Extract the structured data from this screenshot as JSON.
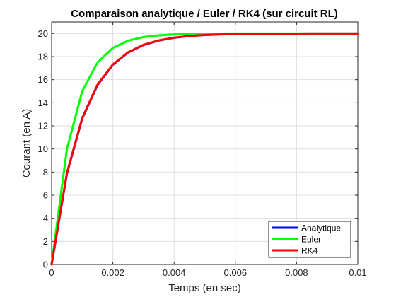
{
  "chart_data": {
    "type": "line",
    "title": "Comparaison analytique / Euler / RK4 (sur circuit RL)",
    "xlabel": "Temps (en sec)",
    "ylabel": "Courant (en A)",
    "xlim": [
      0,
      0.01
    ],
    "ylim": [
      0,
      21
    ],
    "xticks": [
      0,
      0.002,
      0.004,
      0.006,
      0.008,
      0.01
    ],
    "xtick_labels": [
      "0",
      "0.002",
      "0.004",
      "0.006",
      "0.008",
      "0.01"
    ],
    "yticks": [
      0,
      2,
      4,
      6,
      8,
      10,
      12,
      14,
      16,
      18,
      20
    ],
    "ytick_labels": [
      "0",
      "2",
      "4",
      "6",
      "8",
      "10",
      "12",
      "14",
      "16",
      "18",
      "20"
    ],
    "grid": true,
    "legend_position": "bottom-right",
    "x": [
      0,
      0.0005,
      0.001,
      0.0015,
      0.002,
      0.0025,
      0.003,
      0.0035,
      0.004,
      0.0045,
      0.005,
      0.0055,
      0.006,
      0.0065,
      0.007,
      0.0075,
      0.008,
      0.0085,
      0.009,
      0.0095,
      0.01
    ],
    "series": [
      {
        "name": "Analytique",
        "color": "#0000ff",
        "values": [
          0,
          7.87,
          12.64,
          15.54,
          17.29,
          18.36,
          19.0,
          19.39,
          19.63,
          19.78,
          19.87,
          19.92,
          19.95,
          19.97,
          19.98,
          19.99,
          19.99,
          20.0,
          20.0,
          20.0,
          20.0
        ]
      },
      {
        "name": "Euler",
        "color": "#00ff00",
        "values": [
          0,
          10.0,
          15.0,
          17.5,
          18.75,
          19.38,
          19.69,
          19.84,
          19.92,
          19.96,
          19.98,
          19.99,
          20.0,
          20.0,
          20.0,
          20.0,
          20.0,
          20.0,
          20.0,
          20.0,
          20.0
        ]
      },
      {
        "name": "RK4",
        "color": "#ff0000",
        "values": [
          0,
          7.92,
          12.69,
          15.58,
          17.32,
          18.38,
          19.02,
          19.4,
          19.64,
          19.78,
          19.87,
          19.92,
          19.95,
          19.97,
          19.98,
          19.99,
          19.99,
          20.0,
          20.0,
          20.0,
          20.0
        ]
      }
    ]
  }
}
